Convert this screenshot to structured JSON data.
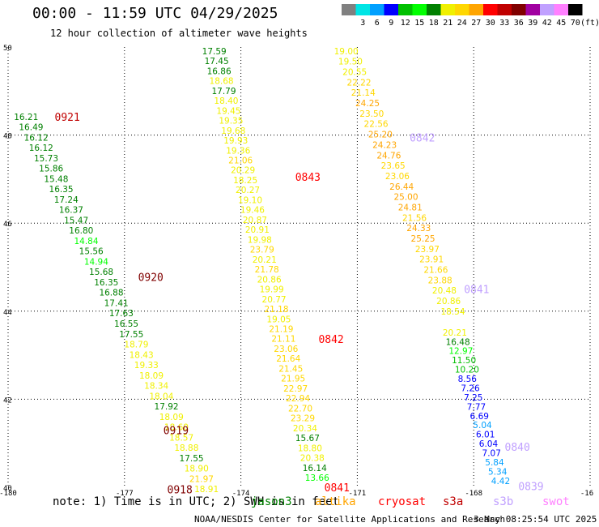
{
  "header": {
    "title": "00:00 - 11:59 UTC 04/29/2025",
    "subtitle": "12 hour collection of altimeter wave heights"
  },
  "colorbar": {
    "units": "(ft)",
    "bins": [
      {
        "label": "",
        "color": "#808080"
      },
      {
        "label": "3",
        "color": "#00e5e5"
      },
      {
        "label": "6",
        "color": "#00a0ff"
      },
      {
        "label": "9",
        "color": "#0000ff"
      },
      {
        "label": "12",
        "color": "#00c000"
      },
      {
        "label": "15",
        "color": "#00ff00"
      },
      {
        "label": "18",
        "color": "#008000"
      },
      {
        "label": "21",
        "color": "#f0f000"
      },
      {
        "label": "24",
        "color": "#ffd700"
      },
      {
        "label": "27",
        "color": "#ffa500"
      },
      {
        "label": "30",
        "color": "#ff0000"
      },
      {
        "label": "33",
        "color": "#c00000"
      },
      {
        "label": "36",
        "color": "#800000"
      },
      {
        "label": "39",
        "color": "#a000a0"
      },
      {
        "label": "42",
        "color": "#c0a0ff"
      },
      {
        "label": "45",
        "color": "#ff80ff"
      },
      {
        "label": "70",
        "color": "#000000"
      }
    ]
  },
  "map": {
    "lon_ticks": [
      "-180",
      "-177",
      "-174",
      "-171",
      "-168",
      "-16"
    ],
    "lat_ticks": [
      "50",
      "48",
      "46",
      "44",
      "42",
      "40"
    ]
  },
  "chart_data": {
    "type": "scatter",
    "xlim": [
      -180,
      -165
    ],
    "ylim": [
      40,
      50
    ],
    "xlabel": "",
    "ylabel": "",
    "grid": true,
    "tracks": [
      {
        "x0": -179.85,
        "y0": 48.42,
        "x1": -175.2,
        "y1": 39.96,
        "color_by_value": true,
        "values": [
          "16.21",
          "16.49",
          "16.12",
          "16.12",
          "15.73",
          "15.86",
          "15.48",
          "16.35",
          "17.24",
          "16.37",
          "15.47",
          "16.80",
          "14.84",
          "15.56",
          "14.94",
          "15.68",
          "16.35",
          "16.88",
          "17.41",
          "17.63",
          "16.55",
          "17.55",
          "18.79",
          "18.43",
          "19.33",
          "18.09",
          "18.34",
          "18.04",
          "17.92",
          "18.09",
          "18.60",
          "18.57",
          "18.88",
          "17.55",
          "18.90",
          "21.97",
          "18.91"
        ]
      },
      {
        "x0": -175.0,
        "y0": 49.91,
        "x1": -172.35,
        "y1": 40.22,
        "color_by_value": true,
        "values": [
          "17.59",
          "17.45",
          "16.86",
          "18.68",
          "17.79",
          "18.40",
          "19.45",
          "19.35",
          "19.68",
          "19.93",
          "19.36",
          "21.06",
          "20.29",
          "18.25",
          "20.27",
          "19.10",
          "19.46",
          "20.87",
          "20.91",
          "19.98",
          "23.79",
          "20.21",
          "21.78",
          "20.86",
          "19.99",
          "20.77",
          "21.18",
          "19.05",
          "21.19",
          "21.11",
          "23.06",
          "21.64",
          "21.45",
          "21.95",
          "22.97",
          "22.94",
          "22.70",
          "23.29",
          "20.34",
          "15.67",
          "18.80",
          "20.38",
          "16.14",
          "13.66"
        ]
      },
      {
        "x0": -171.6,
        "y0": 49.91,
        "x1": -168.85,
        "y1": 44.0,
        "color_by_value": true,
        "values": [
          "19.00",
          "19.50",
          "20.55",
          "22.22",
          "21.14",
          "24.25",
          "23.50",
          "22.56",
          "25.20",
          "24.23",
          "24.76",
          "23.65",
          "23.06",
          "26.44",
          "25.00",
          "24.81",
          "21.56",
          "24.33",
          "25.25",
          "23.97",
          "23.91",
          "21.66",
          "23.88",
          "20.48",
          "20.86",
          "18.54"
        ]
      },
      {
        "x0": -168.8,
        "y0": 43.52,
        "x1": -167.55,
        "y1": 40.15,
        "color_by_value": true,
        "values": [
          "20.21",
          "16.48",
          "12.97",
          "11.50",
          "10.20",
          "8.56",
          "7.26",
          "7.25",
          "7.77",
          "6.69",
          "5.04",
          "6.01",
          "6.04",
          "7.07",
          "5.84",
          "5.34",
          "4.42"
        ]
      }
    ],
    "pass_labels": [
      {
        "text": "0921",
        "x": -178.8,
        "y": 48.42,
        "color": "#c00000"
      },
      {
        "text": "0920",
        "x": -176.65,
        "y": 44.78,
        "color": "#800000"
      },
      {
        "text": "0919",
        "x": -176.0,
        "y": 41.3,
        "color": "#800000"
      },
      {
        "text": "0918",
        "x": -175.9,
        "y": 39.95,
        "color": "#800000"
      },
      {
        "text": "0843",
        "x": -172.6,
        "y": 47.05,
        "color": "#ff0000"
      },
      {
        "text": "0842",
        "x": -172.0,
        "y": 43.37,
        "color": "#ff0000"
      },
      {
        "text": "0841",
        "x": -171.85,
        "y": 40.0,
        "color": "#ff0000"
      },
      {
        "text": "0842",
        "x": -169.65,
        "y": 47.95,
        "color": "#c0a0ff"
      },
      {
        "text": "0841",
        "x": -168.25,
        "y": 44.5,
        "color": "#c0a0ff"
      },
      {
        "text": "0840",
        "x": -167.2,
        "y": 40.92,
        "color": "#c0a0ff"
      },
      {
        "text": "0839",
        "x": -166.85,
        "y": 40.03,
        "color": "#c0a0ff"
      }
    ]
  },
  "footer": {
    "note": "note: 1) Time is in UTC; 2) SWH is in feet",
    "satellites": [
      {
        "name": "jason3",
        "color": "#008000"
      },
      {
        "name": "altika",
        "color": "#ffa500"
      },
      {
        "name": "cryosat",
        "color": "#ff0000"
      },
      {
        "name": "s3a",
        "color": "#c00000"
      },
      {
        "name": "s3b",
        "color": "#c0a0ff"
      },
      {
        "name": "swot",
        "color": "#ff80ff"
      }
    ],
    "credit": "NOAA/NESDIS Center for Satellite Applications and Research",
    "generated": "3 May 08:25:54 UTC 2025"
  }
}
